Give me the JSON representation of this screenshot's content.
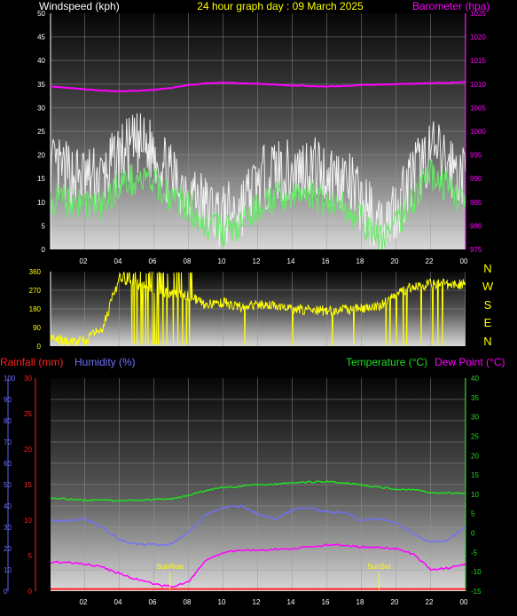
{
  "title": "24 hour graph day : 09 March 2025",
  "labels": {
    "windspeed": "Windspeed (kph)",
    "barometer": "Barometer (hpa)",
    "rainfall": "Rainfall (mm)",
    "humidity": "Humidity (%)",
    "temperature": "Temperature (°C)",
    "dewpoint": "Dew Point (°C)",
    "sunrise": "SunRise",
    "sunset": "SunSet"
  },
  "colors": {
    "title": "#ffff00",
    "wind_axis": "#ffffff",
    "baro": "#ff00ff",
    "gust": "#f2f2f2",
    "avg_wind": "#66ee66",
    "direction": "#ffff00",
    "rain": "#ff2020",
    "humidity": "#7070ff",
    "temperature": "#22dd22",
    "dewpoint": "#ff00ff"
  },
  "x_ticks": [
    "02",
    "04",
    "06",
    "08",
    "10",
    "12",
    "14",
    "16",
    "18",
    "20",
    "22",
    "00"
  ],
  "wind_chart": {
    "type": "line",
    "x_range_hours": [
      0,
      24
    ],
    "y_left_ticks": [
      "0",
      "5",
      "10",
      "15",
      "20",
      "25",
      "30",
      "35",
      "40",
      "45",
      "50"
    ],
    "y_left_range": [
      0,
      50
    ],
    "y_right_ticks": [
      "975",
      "980",
      "985",
      "990",
      "995",
      "1000",
      "1005",
      "1010",
      "1015",
      "1020",
      "1025"
    ],
    "y_right_range": [
      975,
      1025
    ],
    "gust_hourly": [
      17,
      16,
      15,
      15,
      20,
      22,
      21,
      15,
      13,
      9,
      7,
      9,
      14,
      17,
      16,
      18,
      16,
      15,
      10,
      5,
      9,
      16,
      21,
      18,
      15
    ],
    "avg_hourly": [
      11,
      10,
      10,
      9,
      14,
      15,
      14,
      11,
      9,
      5,
      4,
      5,
      9,
      11,
      11,
      12,
      10,
      9,
      6,
      2,
      5,
      11,
      16,
      13,
      10
    ],
    "barometer_hourly": [
      1009.5,
      1009.2,
      1008.9,
      1008.6,
      1008.5,
      1008.6,
      1008.8,
      1009.2,
      1009.8,
      1010.2,
      1010.3,
      1010.2,
      1010.1,
      1009.9,
      1009.7,
      1009.6,
      1009.5,
      1009.6,
      1009.8,
      1009.9,
      1010.0,
      1010.1,
      1010.2,
      1010.3,
      1010.4
    ]
  },
  "direction_chart": {
    "type": "line",
    "y_ticks": [
      "0",
      "90",
      "180",
      "270",
      "360"
    ],
    "y_range": [
      0,
      360
    ],
    "compass": [
      "N",
      "W",
      "S",
      "E",
      "N"
    ],
    "direction_hourly": [
      40,
      20,
      25,
      90,
      330,
      300,
      280,
      250,
      240,
      200,
      210,
      190,
      200,
      190,
      180,
      175,
      170,
      175,
      180,
      190,
      250,
      290,
      300,
      300,
      300
    ]
  },
  "temp_chart": {
    "type": "line",
    "y_left_ticks": [
      "0",
      "10",
      "20",
      "30",
      "40",
      "50",
      "60",
      "70",
      "80",
      "90",
      "100"
    ],
    "y_left_range": [
      0,
      100
    ],
    "y_rain_ticks": [
      "0",
      "5",
      "10",
      "15",
      "20",
      "25",
      "30"
    ],
    "y_rain_range": [
      0,
      30
    ],
    "y_right_ticks": [
      "-15",
      "-10",
      "-5",
      "0",
      "5",
      "10",
      "15",
      "20",
      "25",
      "30",
      "35",
      "40"
    ],
    "y_right_range": [
      -15,
      40
    ],
    "sunrise_hour": 6.9,
    "sunset_hour": 19.0,
    "rainfall_hourly": [
      0.3,
      0.3,
      0.3,
      0.3,
      0.3,
      0.3,
      0.3,
      0.3,
      0.3,
      0.3,
      0.3,
      0.3,
      0.3,
      0.3,
      0.3,
      0.3,
      0.3,
      0.3,
      0.3,
      0.3,
      0.3,
      0.3,
      0.3,
      0.3,
      0.3
    ],
    "humidity_hourly": [
      33,
      33,
      34,
      30,
      24,
      22,
      22,
      22,
      28,
      36,
      39,
      40,
      36,
      34,
      38,
      39,
      37,
      37,
      33,
      34,
      32,
      27,
      23,
      24,
      30
    ],
    "temperature_hourly": [
      9.0,
      8.8,
      8.5,
      8.5,
      8.3,
      8.5,
      8.6,
      8.8,
      9.8,
      11.0,
      11.8,
      12.0,
      12.5,
      12.7,
      13.0,
      13.2,
      13.3,
      13.0,
      12.4,
      11.8,
      11.4,
      11.2,
      10.5,
      10.3,
      10.2
    ],
    "dewpoint_hourly": [
      -7.5,
      -7.5,
      -8.0,
      -8.8,
      -10.5,
      -12.0,
      -13.2,
      -13.8,
      -12.5,
      -7.0,
      -5.0,
      -4.5,
      -4.5,
      -4.2,
      -4.0,
      -3.5,
      -3.0,
      -3.2,
      -3.5,
      -3.8,
      -4.0,
      -5.5,
      -9.5,
      -9.0,
      -8.0
    ]
  }
}
